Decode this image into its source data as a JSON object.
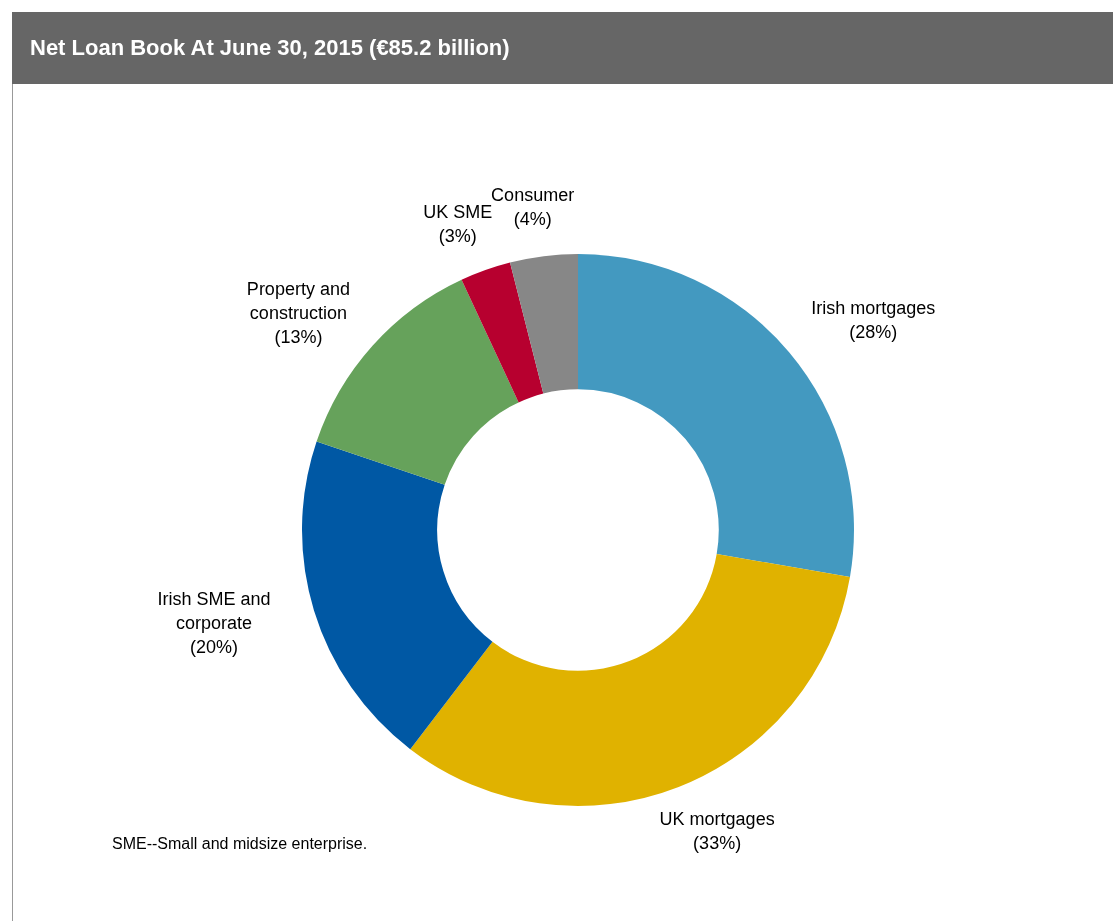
{
  "chart_data": {
    "type": "donut",
    "title": "Net Loan Book At June 30, 2015 (€85.2 billion)",
    "categories": [
      "Irish mortgages",
      "UK mortgages",
      "Irish SME and corporate",
      "Property and construction",
      "UK SME",
      "Consumer"
    ],
    "values": [
      28,
      33,
      20,
      13,
      3,
      4
    ],
    "value_labels": [
      "(28%)",
      "(33%)",
      "(20%)",
      "(13%)",
      "(3%)",
      "(4%)"
    ],
    "colors": [
      "#4399c0",
      "#e0b200",
      "#0058a4",
      "#66a25b",
      "#b7002f",
      "#878787"
    ],
    "legend": false,
    "annotations": [
      "SME--Small and midsize enterprise."
    ]
  }
}
